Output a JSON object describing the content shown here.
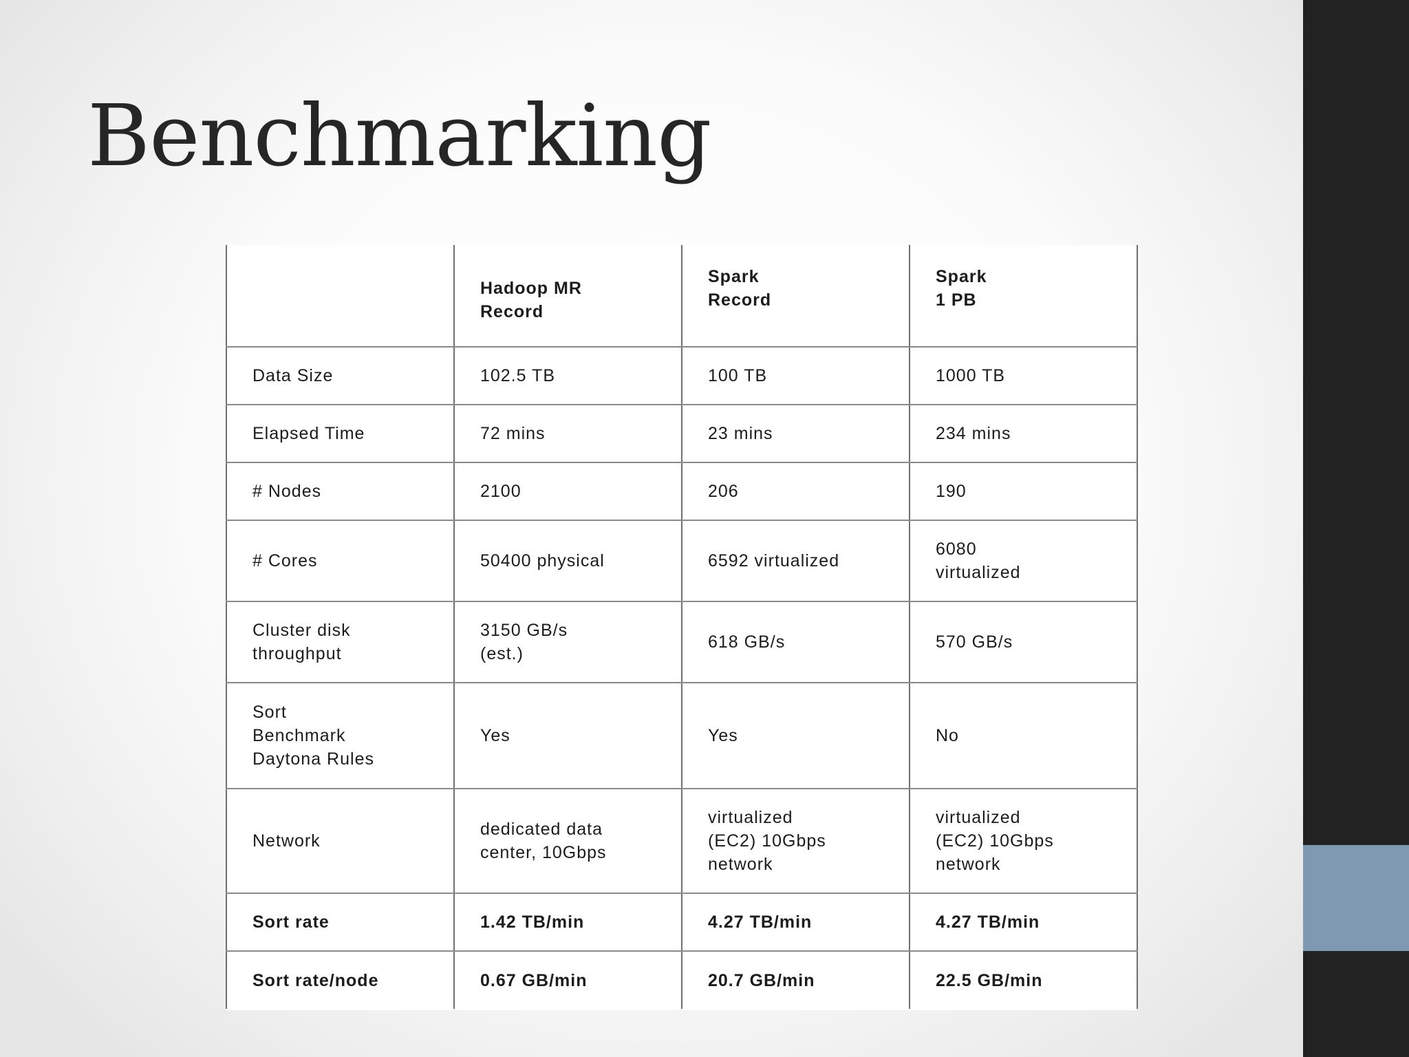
{
  "slide": {
    "title": "Benchmarking"
  },
  "table": {
    "headers": [
      "",
      "Hadoop MR\nRecord",
      "Spark\nRecord",
      "Spark\n1 PB"
    ],
    "rows": [
      {
        "label": "Data Size",
        "cells": [
          "102.5 TB",
          "100 TB",
          "1000 TB"
        ]
      },
      {
        "label": "Elapsed Time",
        "cells": [
          "72 mins",
          "23 mins",
          "234 mins"
        ]
      },
      {
        "label": "# Nodes",
        "cells": [
          "2100",
          "206",
          "190"
        ]
      },
      {
        "label": "# Cores",
        "cells": [
          "50400 physical",
          "6592 virtualized",
          "6080\nvirtualized"
        ]
      },
      {
        "label": "Cluster disk\nthroughput",
        "cells": [
          "3150 GB/s\n(est.)",
          "618 GB/s",
          "570 GB/s"
        ]
      },
      {
        "label": "Sort\nBenchmark\nDaytona Rules",
        "cells": [
          "Yes",
          "Yes",
          "No"
        ]
      },
      {
        "label": "Network",
        "cells": [
          "dedicated data\ncenter, 10Gbps",
          "virtualized\n(EC2) 10Gbps\nnetwork",
          "virtualized\n(EC2) 10Gbps\nnetwork"
        ]
      },
      {
        "label": "Sort rate",
        "cells": [
          "1.42 TB/min",
          "4.27 TB/min",
          "4.27 TB/min"
        ]
      },
      {
        "label": "Sort rate/node",
        "cells": [
          "0.67 GB/min",
          "20.7 GB/min",
          "22.5 GB/min"
        ]
      }
    ]
  },
  "colors": {
    "right_bar": "#222222",
    "right_accent": "#7f9ab0",
    "title_text": "#262626"
  }
}
